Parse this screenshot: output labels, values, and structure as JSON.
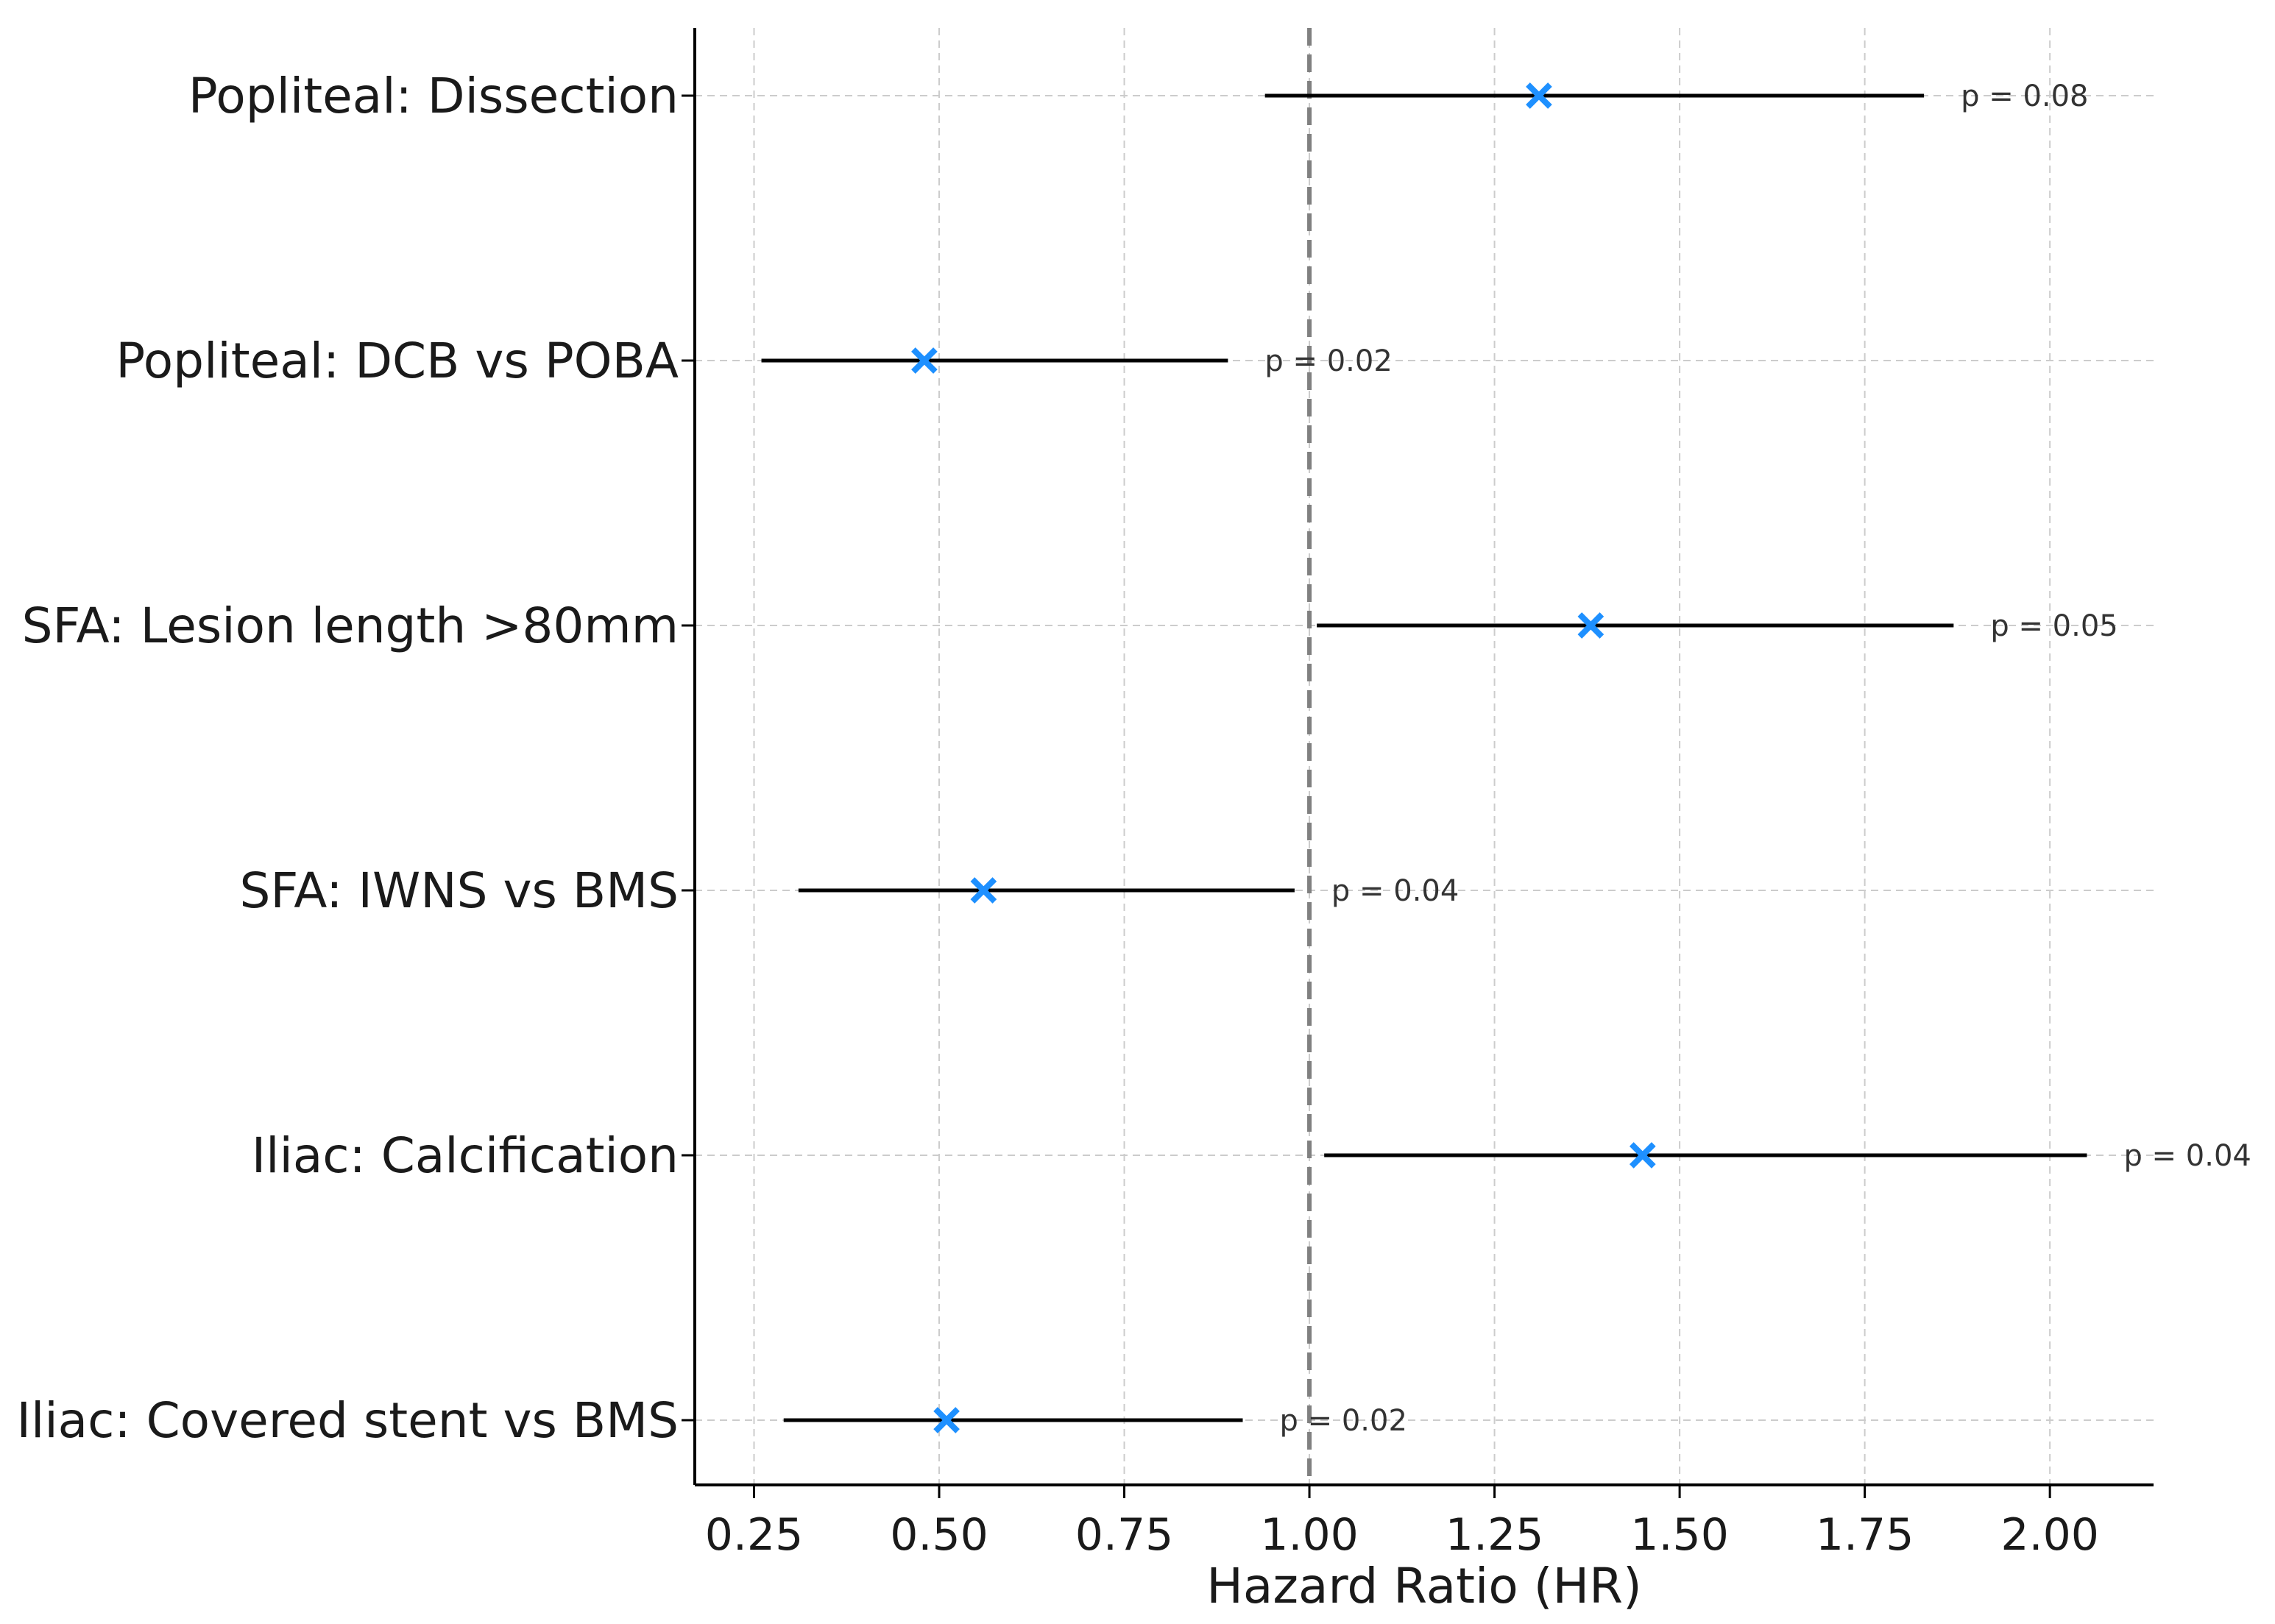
{
  "chart_data": {
    "type": "forest",
    "title": "",
    "xlabel": "Hazard Ratio (HR)",
    "ylabel": "",
    "xlim": [
      0.17,
      2.14
    ],
    "xticks": [
      0.25,
      0.5,
      0.75,
      1.0,
      1.25,
      1.5,
      1.75,
      2.0
    ],
    "xtick_labels": [
      "0.25",
      "0.50",
      "0.75",
      "1.00",
      "1.25",
      "1.50",
      "1.75",
      "2.00"
    ],
    "reference_line": 1.0,
    "grid": true,
    "marker_color": "#1e90ff",
    "rows": [
      {
        "label": "Popliteal: Dissection",
        "hr": 1.31,
        "ci_low": 0.94,
        "ci_high": 1.83,
        "p_label": "p = 0.08"
      },
      {
        "label": "Popliteal: DCB vs POBA",
        "hr": 0.48,
        "ci_low": 0.26,
        "ci_high": 0.89,
        "p_label": "p = 0.02"
      },
      {
        "label": "SFA: Lesion length >80mm",
        "hr": 1.38,
        "ci_low": 1.01,
        "ci_high": 1.87,
        "p_label": "p = 0.05"
      },
      {
        "label": "SFA: IWNS vs BMS",
        "hr": 0.56,
        "ci_low": 0.31,
        "ci_high": 0.98,
        "p_label": "p = 0.04"
      },
      {
        "label": "Iliac: Calcification",
        "hr": 1.45,
        "ci_low": 1.02,
        "ci_high": 2.05,
        "p_label": "p = 0.04"
      },
      {
        "label": "Iliac: Covered stent vs BMS",
        "hr": 0.51,
        "ci_low": 0.29,
        "ci_high": 0.91,
        "p_label": "p = 0.02"
      }
    ]
  }
}
